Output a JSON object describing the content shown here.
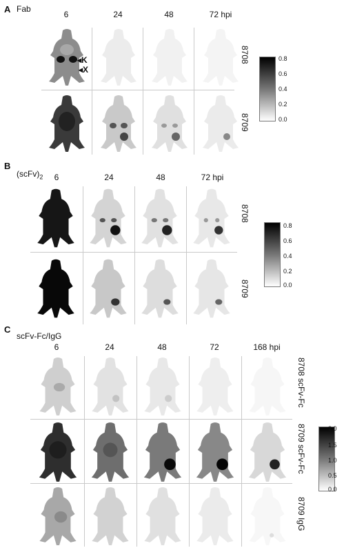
{
  "panels": [
    {
      "letter": "A",
      "title": "Fab",
      "times": [
        "6",
        "24",
        "48",
        "72 hpi"
      ],
      "rows": [
        "8708",
        "8709"
      ],
      "colorbar_ticks": [
        "0.8",
        "0.6",
        "0.4",
        "0.2",
        "0.0"
      ],
      "annotations": [
        "K",
        "X"
      ]
    },
    {
      "letter": "B",
      "title": "(scFv)",
      "title_subscript": "2",
      "times": [
        "6",
        "24",
        "48",
        "72 hpi"
      ],
      "rows": [
        "8708",
        "8709"
      ],
      "colorbar_ticks": [
        "0.8",
        "0.6",
        "0.4",
        "0.2",
        "0.0"
      ]
    },
    {
      "letter": "C",
      "title": "scFv-Fc/IgG",
      "times": [
        "6",
        "24",
        "48",
        "72",
        "168 hpi"
      ],
      "rows": [
        "8708 scFv-Fc",
        "8709 scFv-Fc",
        "8709 IgG"
      ],
      "colorbar_ticks": [
        "2.0",
        "1.5",
        "1.0",
        "0.5",
        "0.0"
      ]
    }
  ],
  "colors": {
    "divider": "#c9c9c9",
    "max_signal": "#000000",
    "min_signal": "#ffffff"
  }
}
